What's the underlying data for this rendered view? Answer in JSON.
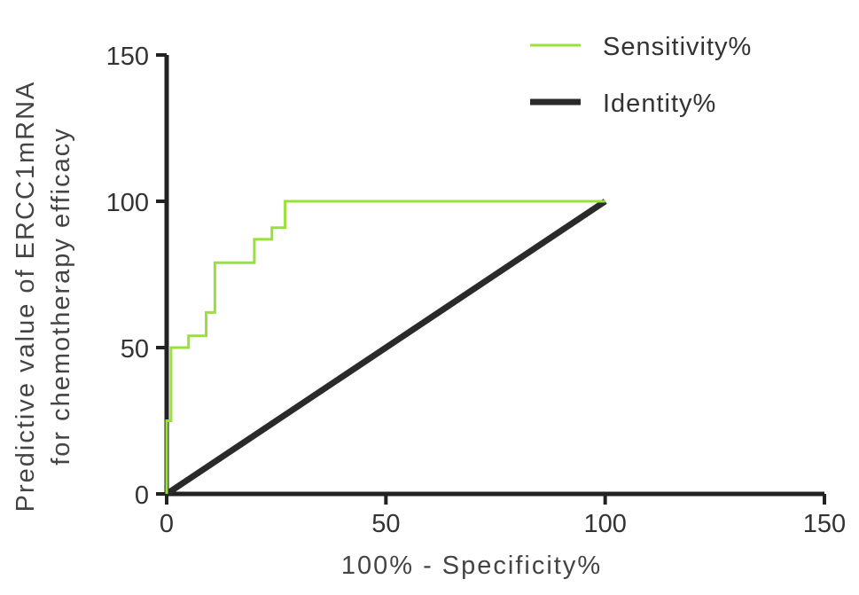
{
  "chart_data": {
    "type": "line",
    "xlabel": "100% - Specificity%",
    "ylabel_line1": "Predictive value of ERCC1mRNA",
    "ylabel_line2": "for chemotherapy efficacy",
    "xlim": [
      0,
      150
    ],
    "ylim": [
      0,
      150
    ],
    "xticks": [
      "0",
      "50",
      "100",
      "150"
    ],
    "yticks": [
      "0",
      "50",
      "100",
      "150"
    ],
    "grid": false,
    "legend_position": "top-right",
    "series": [
      {
        "name": "Sensitivity%",
        "color": "#99e03a",
        "style": "step",
        "x": [
          0,
          0,
          1,
          1,
          2,
          2,
          5,
          5,
          9,
          9,
          11,
          11,
          20,
          20,
          24,
          24,
          27,
          27,
          100
        ],
        "y": [
          0,
          25,
          25,
          50,
          50,
          50,
          50,
          54,
          54,
          62,
          62,
          79,
          79,
          87,
          87,
          91,
          91,
          100,
          100
        ]
      },
      {
        "name": "Identity%",
        "color": "#2a2a2a",
        "style": "line",
        "x": [
          0,
          100
        ],
        "y": [
          0,
          100
        ]
      }
    ]
  }
}
